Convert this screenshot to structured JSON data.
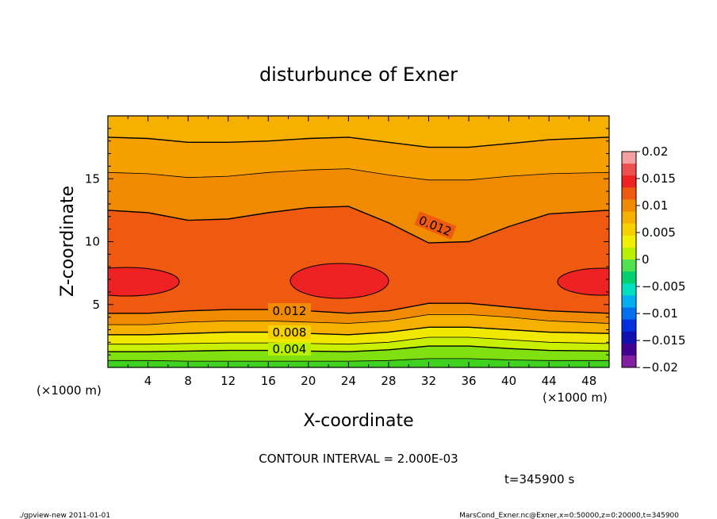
{
  "chart_data": {
    "type": "heatmap",
    "title": "disturbunce of Exner",
    "xlabel": "X-coordinate",
    "ylabel": "Z-coordinate",
    "x_unit_left": "(×1000 m)",
    "x_unit_right": "(×1000 m)",
    "xlim": [
      0,
      50
    ],
    "ylim": [
      0,
      20
    ],
    "x_ticks": [
      4,
      8,
      12,
      16,
      20,
      24,
      28,
      32,
      36,
      40,
      44,
      48
    ],
    "y_ticks": [
      5,
      10,
      15
    ],
    "colorbar": {
      "ticks": [
        "0.02",
        "0.015",
        "0.01",
        "0.005",
        "0",
        "−0.005",
        "−0.01",
        "−0.015",
        "−0.02"
      ],
      "colors": [
        "#f4a0a0",
        "#ee5050",
        "#ee2222",
        "#f05a10",
        "#f08a00",
        "#f5b000",
        "#f7d000",
        "#f0f000",
        "#b8f000",
        "#50e050",
        "#00d070",
        "#00e0c0",
        "#00b0f0",
        "#0070f0",
        "#0030e0",
        "#1010b0",
        "#400090",
        "#8020a0"
      ]
    },
    "contour_labels": [
      "0.012",
      "0.012",
      "0.008",
      "0.004"
    ],
    "contour_interval_text": "CONTOUR INTERVAL = 2.000E-03",
    "time_text": "t=345900 s",
    "footer_left": "./gpview-new  2011-01-01",
    "footer_right": "MarsCond_Exner.nc@Exner,x=0:50000,z=0:20000,t=345900",
    "contours": [
      {
        "level": 0.002,
        "z": [
          0.55,
          0.55,
          0.5,
          0.5,
          0.5,
          0.5,
          0.5,
          0.55,
          0.7,
          0.7,
          0.6,
          0.55,
          0.55
        ]
      },
      {
        "level": 0.004,
        "z": [
          1.25,
          1.25,
          1.3,
          1.35,
          1.35,
          1.3,
          1.25,
          1.4,
          1.7,
          1.7,
          1.5,
          1.35,
          1.3
        ]
      },
      {
        "level": 0.006,
        "z": [
          1.85,
          1.85,
          1.9,
          1.95,
          1.95,
          1.9,
          1.85,
          2.0,
          2.4,
          2.4,
          2.2,
          2.0,
          1.9
        ]
      },
      {
        "level": 0.008,
        "z": [
          2.6,
          2.6,
          2.7,
          2.8,
          2.8,
          2.7,
          2.6,
          2.8,
          3.2,
          3.2,
          3.0,
          2.8,
          2.7
        ]
      },
      {
        "level": 0.01,
        "z": [
          3.4,
          3.4,
          3.6,
          3.7,
          3.7,
          3.6,
          3.5,
          3.7,
          4.2,
          4.2,
          4.0,
          3.7,
          3.5
        ]
      },
      {
        "level": 0.012,
        "z": [
          4.3,
          4.3,
          4.5,
          4.6,
          4.6,
          4.5,
          4.3,
          4.5,
          5.1,
          5.1,
          4.8,
          4.5,
          4.3
        ]
      },
      {
        "level": 0.012,
        "z": [
          12.5,
          12.3,
          11.7,
          11.8,
          12.3,
          12.7,
          12.8,
          11.5,
          9.9,
          10.0,
          11.2,
          12.2,
          12.5
        ]
      },
      {
        "level": 0.01,
        "z": [
          15.5,
          15.4,
          15.1,
          15.2,
          15.5,
          15.7,
          15.8,
          15.3,
          14.9,
          14.9,
          15.2,
          15.4,
          15.5
        ]
      },
      {
        "level": 0.008,
        "z": [
          18.3,
          18.2,
          17.9,
          17.9,
          18.0,
          18.2,
          18.3,
          17.9,
          17.5,
          17.5,
          17.8,
          18.1,
          18.3
        ]
      }
    ]
  }
}
